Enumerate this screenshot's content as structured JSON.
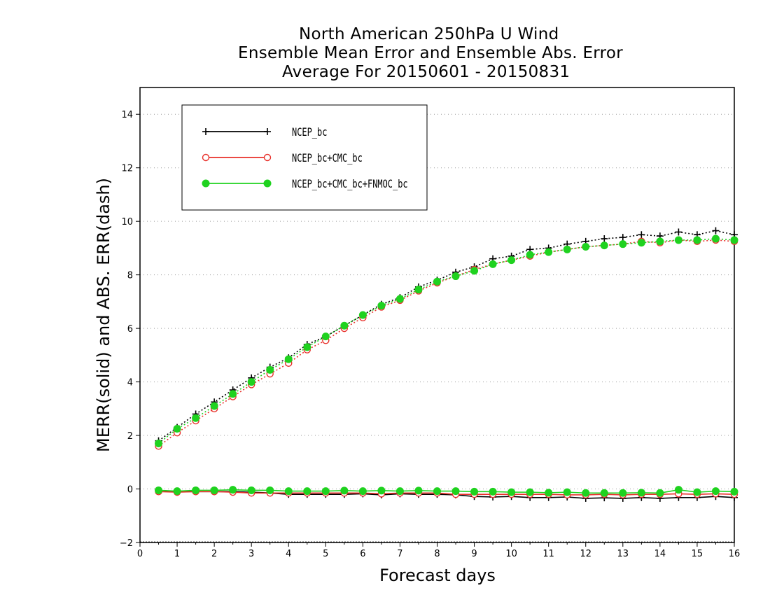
{
  "chart_data": {
    "type": "line",
    "title_lines": [
      "North American 250hPa U Wind",
      "Ensemble Mean Error and Ensemble Abs. Error",
      "Average For 20150601 - 20150831"
    ],
    "xlabel": "Forecast days",
    "ylabel": "MERR(solid) and ABS. ERR(dash)",
    "xlim": [
      0,
      16
    ],
    "ylim": [
      -2,
      15
    ],
    "xticks": [
      0,
      1,
      2,
      3,
      4,
      5,
      6,
      7,
      8,
      9,
      10,
      11,
      12,
      13,
      14,
      15,
      16
    ],
    "yticks": [
      -2,
      0,
      2,
      4,
      6,
      8,
      10,
      12,
      14
    ],
    "grid": "horizontal dotted",
    "legend_placement": "top-left",
    "x": [
      0.5,
      1,
      1.5,
      2,
      2.5,
      3,
      3.5,
      4,
      4.5,
      5,
      5.5,
      6,
      6.5,
      7,
      7.5,
      8,
      8.5,
      9,
      9.5,
      10,
      10.5,
      11,
      11.5,
      12,
      12.5,
      13,
      13.5,
      14,
      14.5,
      15,
      15.5,
      16
    ],
    "series": [
      {
        "name": "NCEP_bc",
        "color": "#000000",
        "marker": "plus",
        "abs_err": [
          1.8,
          2.3,
          2.8,
          3.25,
          3.7,
          4.15,
          4.55,
          4.9,
          5.4,
          5.7,
          6.1,
          6.5,
          6.9,
          7.15,
          7.55,
          7.8,
          8.1,
          8.3,
          8.6,
          8.7,
          8.95,
          9.0,
          9.15,
          9.25,
          9.35,
          9.4,
          9.5,
          9.45,
          9.6,
          9.5,
          9.65,
          9.5
        ],
        "mean_err": [
          -0.05,
          -0.1,
          -0.1,
          -0.1,
          -0.1,
          -0.12,
          -0.15,
          -0.2,
          -0.2,
          -0.2,
          -0.2,
          -0.18,
          -0.22,
          -0.18,
          -0.2,
          -0.2,
          -0.22,
          -0.28,
          -0.3,
          -0.28,
          -0.32,
          -0.32,
          -0.3,
          -0.35,
          -0.33,
          -0.35,
          -0.32,
          -0.35,
          -0.32,
          -0.32,
          -0.28,
          -0.32
        ]
      },
      {
        "name": "NCEP_bc+CMC_bc",
        "color": "#e8302a",
        "marker": "open-circle",
        "abs_err": [
          1.6,
          2.1,
          2.55,
          3.0,
          3.45,
          3.9,
          4.3,
          4.7,
          5.2,
          5.55,
          6.0,
          6.4,
          6.8,
          7.05,
          7.4,
          7.7,
          7.95,
          8.2,
          8.4,
          8.55,
          8.7,
          8.85,
          8.95,
          9.05,
          9.1,
          9.15,
          9.25,
          9.2,
          9.3,
          9.25,
          9.3,
          9.25
        ],
        "mean_err": [
          -0.1,
          -0.12,
          -0.1,
          -0.1,
          -0.12,
          -0.15,
          -0.15,
          -0.15,
          -0.15,
          -0.15,
          -0.15,
          -0.15,
          -0.18,
          -0.15,
          -0.15,
          -0.15,
          -0.2,
          -0.2,
          -0.2,
          -0.2,
          -0.2,
          -0.2,
          -0.22,
          -0.22,
          -0.2,
          -0.22,
          -0.2,
          -0.2,
          -0.18,
          -0.2,
          -0.18,
          -0.2
        ]
      },
      {
        "name": "NCEP_bc+CMC_bc+FNMOC_bc",
        "color": "#1fd21f",
        "marker": "filled-circle",
        "abs_err": [
          1.7,
          2.25,
          2.65,
          3.1,
          3.55,
          4.0,
          4.45,
          4.85,
          5.3,
          5.7,
          6.1,
          6.5,
          6.85,
          7.1,
          7.45,
          7.75,
          7.95,
          8.15,
          8.4,
          8.55,
          8.75,
          8.85,
          8.95,
          9.05,
          9.1,
          9.15,
          9.2,
          9.25,
          9.3,
          9.3,
          9.35,
          9.3
        ],
        "mean_err": [
          -0.05,
          -0.08,
          -0.05,
          -0.05,
          -0.03,
          -0.05,
          -0.05,
          -0.08,
          -0.08,
          -0.08,
          -0.06,
          -0.08,
          -0.06,
          -0.08,
          -0.06,
          -0.08,
          -0.08,
          -0.1,
          -0.1,
          -0.12,
          -0.12,
          -0.14,
          -0.12,
          -0.15,
          -0.15,
          -0.15,
          -0.14,
          -0.15,
          -0.03,
          -0.12,
          -0.08,
          -0.1
        ]
      }
    ]
  }
}
